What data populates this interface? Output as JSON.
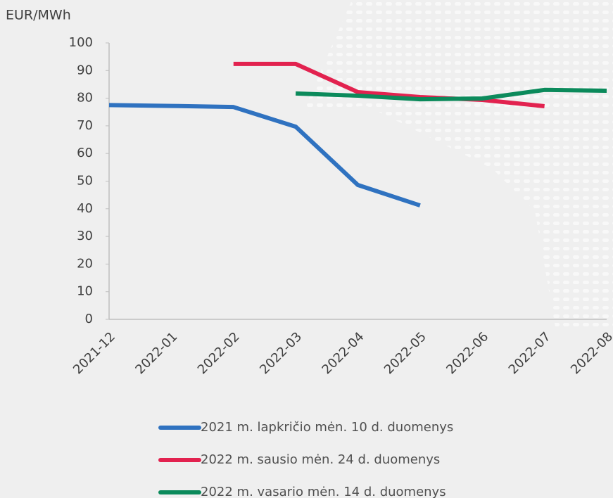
{
  "chart_data": {
    "type": "line",
    "y_label": "EUR/MWh",
    "categories": [
      "2021-12",
      "2022-01",
      "2022-02",
      "2022-03",
      "2022-04",
      "2022-05",
      "2022-06",
      "2022-07",
      "2022-08"
    ],
    "series": [
      {
        "name": "2021 m. lapkričio mėn. 10 d. duomenys",
        "color": "#2f72c0",
        "values": [
          77.5,
          77.2,
          76.8,
          69.7,
          48.6,
          41.2,
          null,
          null,
          null
        ]
      },
      {
        "name": "2022 m. sausio mėn. 24 d. duomenys",
        "color": "#e2224f",
        "values": [
          null,
          null,
          92.4,
          92.4,
          82.2,
          80.4,
          79.4,
          77.1,
          null
        ]
      },
      {
        "name": "2022 m. vasario mėn. 14 d. duomenys",
        "color": "#0b8a5b",
        "values": [
          null,
          null,
          null,
          81.7,
          80.9,
          79.6,
          79.9,
          83.0,
          82.7
        ]
      }
    ],
    "ylim": [
      0,
      100
    ],
    "yticks": [
      0,
      10,
      20,
      30,
      40,
      50,
      60,
      70,
      80,
      90,
      100
    ],
    "grid": false
  }
}
